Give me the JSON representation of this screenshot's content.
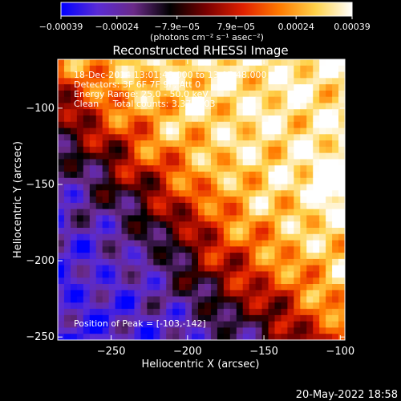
{
  "chart_data": {
    "type": "heatmap",
    "title": "Reconstructed RHESSI Image",
    "xlabel": "Heliocentric X (arcsec)",
    "ylabel": "Heliocentric Y (arcsec)",
    "xlim": [
      -285,
      -97
    ],
    "ylim": [
      -252,
      -68
    ],
    "xticks": [
      -250,
      -200,
      -150,
      -100
    ],
    "yticks": [
      -100,
      -150,
      -200,
      -250
    ],
    "xtick_labels": [
      "−250",
      "−200",
      "−150",
      "−100"
    ],
    "ytick_labels": [
      "−100",
      "−150",
      "−200",
      "−250"
    ],
    "colorbar": {
      "range": [
        -0.00039,
        0.00039
      ],
      "ticks": [
        -0.00039,
        -0.00024,
        -7.9e-05,
        7.9e-05,
        0.00024,
        0.00039
      ],
      "tick_labels": [
        "−0.00039",
        "−0.00024",
        "−7.9e−05",
        "7.9e−05",
        "0.00024",
        "0.00039"
      ],
      "units_label": "(photons cm⁻² s⁻¹ asec⁻²)",
      "colormap": [
        "#0000ff",
        "#5a2bd6",
        "#6a2a88",
        "#000000",
        "#7a0000",
        "#e02000",
        "#ff7a00",
        "#ffd24a",
        "#ffffff"
      ]
    },
    "peak": {
      "x": -103,
      "y": -142
    },
    "annotations": [
      "18-Dec-2014 13:01:48.000 to 13:07:48.000",
      "Detectors: 3F 6F 7F 9F, Att 0",
      "Energy Range: 25.0 - 50.0 keV",
      "Clean     Total counts: 3.37E+03"
    ],
    "peak_label": "Position of Peak = [-103,-142]",
    "timestamp": "20-May-2022 18:58",
    "grid": false
  }
}
